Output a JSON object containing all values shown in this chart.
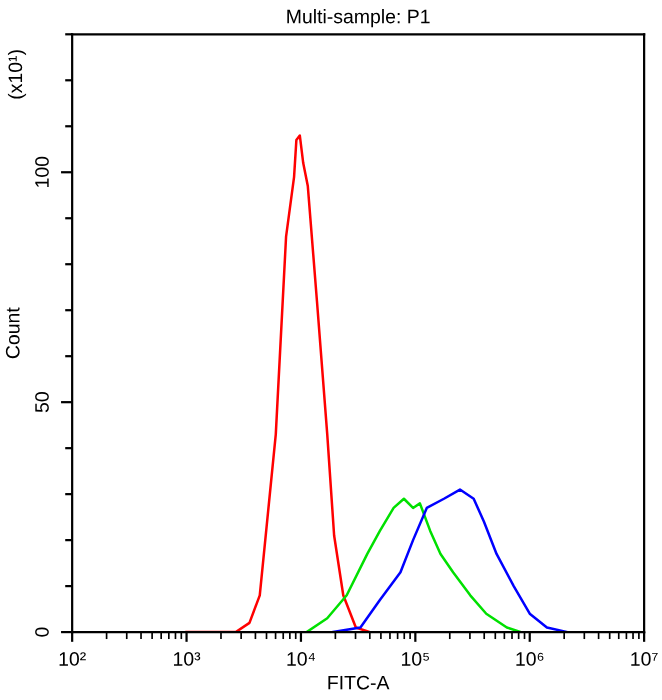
{
  "chart_data": {
    "type": "line",
    "title": "Multi-sample: P1",
    "xlabel": "FITC-A",
    "ylabel": "Count",
    "annotations": [
      "(x10¹)"
    ],
    "log": "x",
    "grid": false,
    "marker": "none",
    "line_style": "solid",
    "xlim": [
      100,
      10000000
    ],
    "xticks": [
      {
        "value": 100,
        "label": "10²"
      },
      {
        "value": 1000,
        "label": "10³"
      },
      {
        "value": 10000,
        "label": "10⁴"
      },
      {
        "value": 100000,
        "label": "10⁵"
      },
      {
        "value": 1000000,
        "label": "10⁶"
      },
      {
        "value": 10000000,
        "label": "10⁷"
      }
    ],
    "ylim": [
      0,
      130
    ],
    "yticks": [
      0,
      {
        "value": 10,
        "label": null
      },
      {
        "value": 20,
        "label": null
      },
      {
        "value": 30,
        "label": null
      },
      {
        "value": 40,
        "label": null
      },
      50,
      {
        "value": 60,
        "label": null
      },
      {
        "value": 70,
        "label": null
      },
      {
        "value": 80,
        "label": null
      },
      {
        "value": 90,
        "label": null
      },
      100,
      {
        "value": 110,
        "label": null
      },
      {
        "value": 120,
        "label": null
      },
      {
        "value": 130,
        "label": null
      }
    ],
    "series": [
      {
        "color": "#ff0000",
        "x": [
          1000,
          2692,
          3548,
          4365,
          5012,
          6026,
          7413,
          8710,
          9120,
          9772,
          10470,
          11480,
          13800,
          16980,
          19500,
          23440,
          30200,
          39810
        ],
        "values": [
          0,
          0,
          2,
          8,
          23,
          43,
          86,
          99,
          107,
          108,
          102,
          97,
          72,
          43,
          21,
          8,
          1,
          0
        ]
      },
      {
        "color": "#00e000",
        "x": [
          11220,
          16980,
          25120,
          38020,
          48980,
          64570,
          79430,
          95500,
          109600,
          134900,
          166000,
          213800,
          302000,
          416900,
          631000,
          831800
        ],
        "values": [
          0,
          3,
          8,
          17,
          22,
          27,
          29,
          27,
          28,
          22,
          17,
          13,
          8,
          4,
          1,
          0
        ]
      },
      {
        "color": "#0000ff",
        "x": [
          19050,
          33110,
          48980,
          74130,
          95500,
          125900,
          177800,
          245500,
          323600,
          398100,
          512900,
          724400,
          1000000,
          1413000,
          2138000
        ],
        "values": [
          0,
          1,
          7,
          13,
          20,
          27,
          29,
          31,
          29,
          24,
          17,
          10,
          4,
          1,
          0
        ]
      }
    ]
  }
}
